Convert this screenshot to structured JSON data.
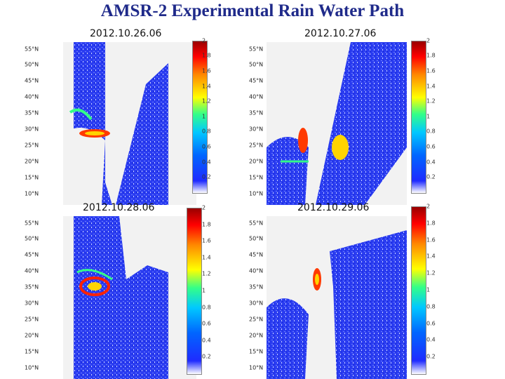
{
  "title": "AMSR-2 Experimental Rain Water Path",
  "panels": [
    {
      "date": "2012.10.26.06",
      "lat_labels": [
        "55°N",
        "50°N",
        "45°N",
        "40°N",
        "35°N",
        "30°N",
        "25°N",
        "20°N",
        "15°N",
        "10°N"
      ],
      "colorbar_ticks": [
        "2",
        "1.8",
        "1.6",
        "1.4",
        "1.2",
        "1",
        "0.8",
        "0.6",
        "0.4",
        "0.2"
      ]
    },
    {
      "date": "2012.10.27.06",
      "lat_labels": [
        "55°N",
        "50°N",
        "45°N",
        "40°N",
        "35°N",
        "30°N",
        "25°N",
        "20°N",
        "15°N",
        "10°N"
      ],
      "colorbar_ticks": [
        "2",
        "1.8",
        "1.6",
        "1.4",
        "1.2",
        "1",
        "0.8",
        "0.6",
        "0.4",
        "0.2"
      ]
    },
    {
      "date": "2012.10.28.06",
      "lat_labels": [
        "55°N",
        "50°N",
        "45°N",
        "40°N",
        "35°N",
        "30°N",
        "25°N",
        "20°N",
        "15°N",
        "10°N"
      ],
      "colorbar_ticks": [
        "2",
        "1.8",
        "1.6",
        "1.4",
        "1.2",
        "1",
        "0.8",
        "0.6",
        "0.4",
        "0.2"
      ]
    },
    {
      "date": "2012.10.29.06",
      "lat_labels": [
        "55°N",
        "50°N",
        "45°N",
        "40°N",
        "35°N",
        "30°N",
        "25°N",
        "20°N",
        "15°N",
        "10°N"
      ],
      "colorbar_ticks": [
        "2",
        "1.8",
        "1.6",
        "1.4",
        "1.2",
        "1",
        "0.8",
        "0.6",
        "0.4",
        "0.2"
      ]
    }
  ]
}
